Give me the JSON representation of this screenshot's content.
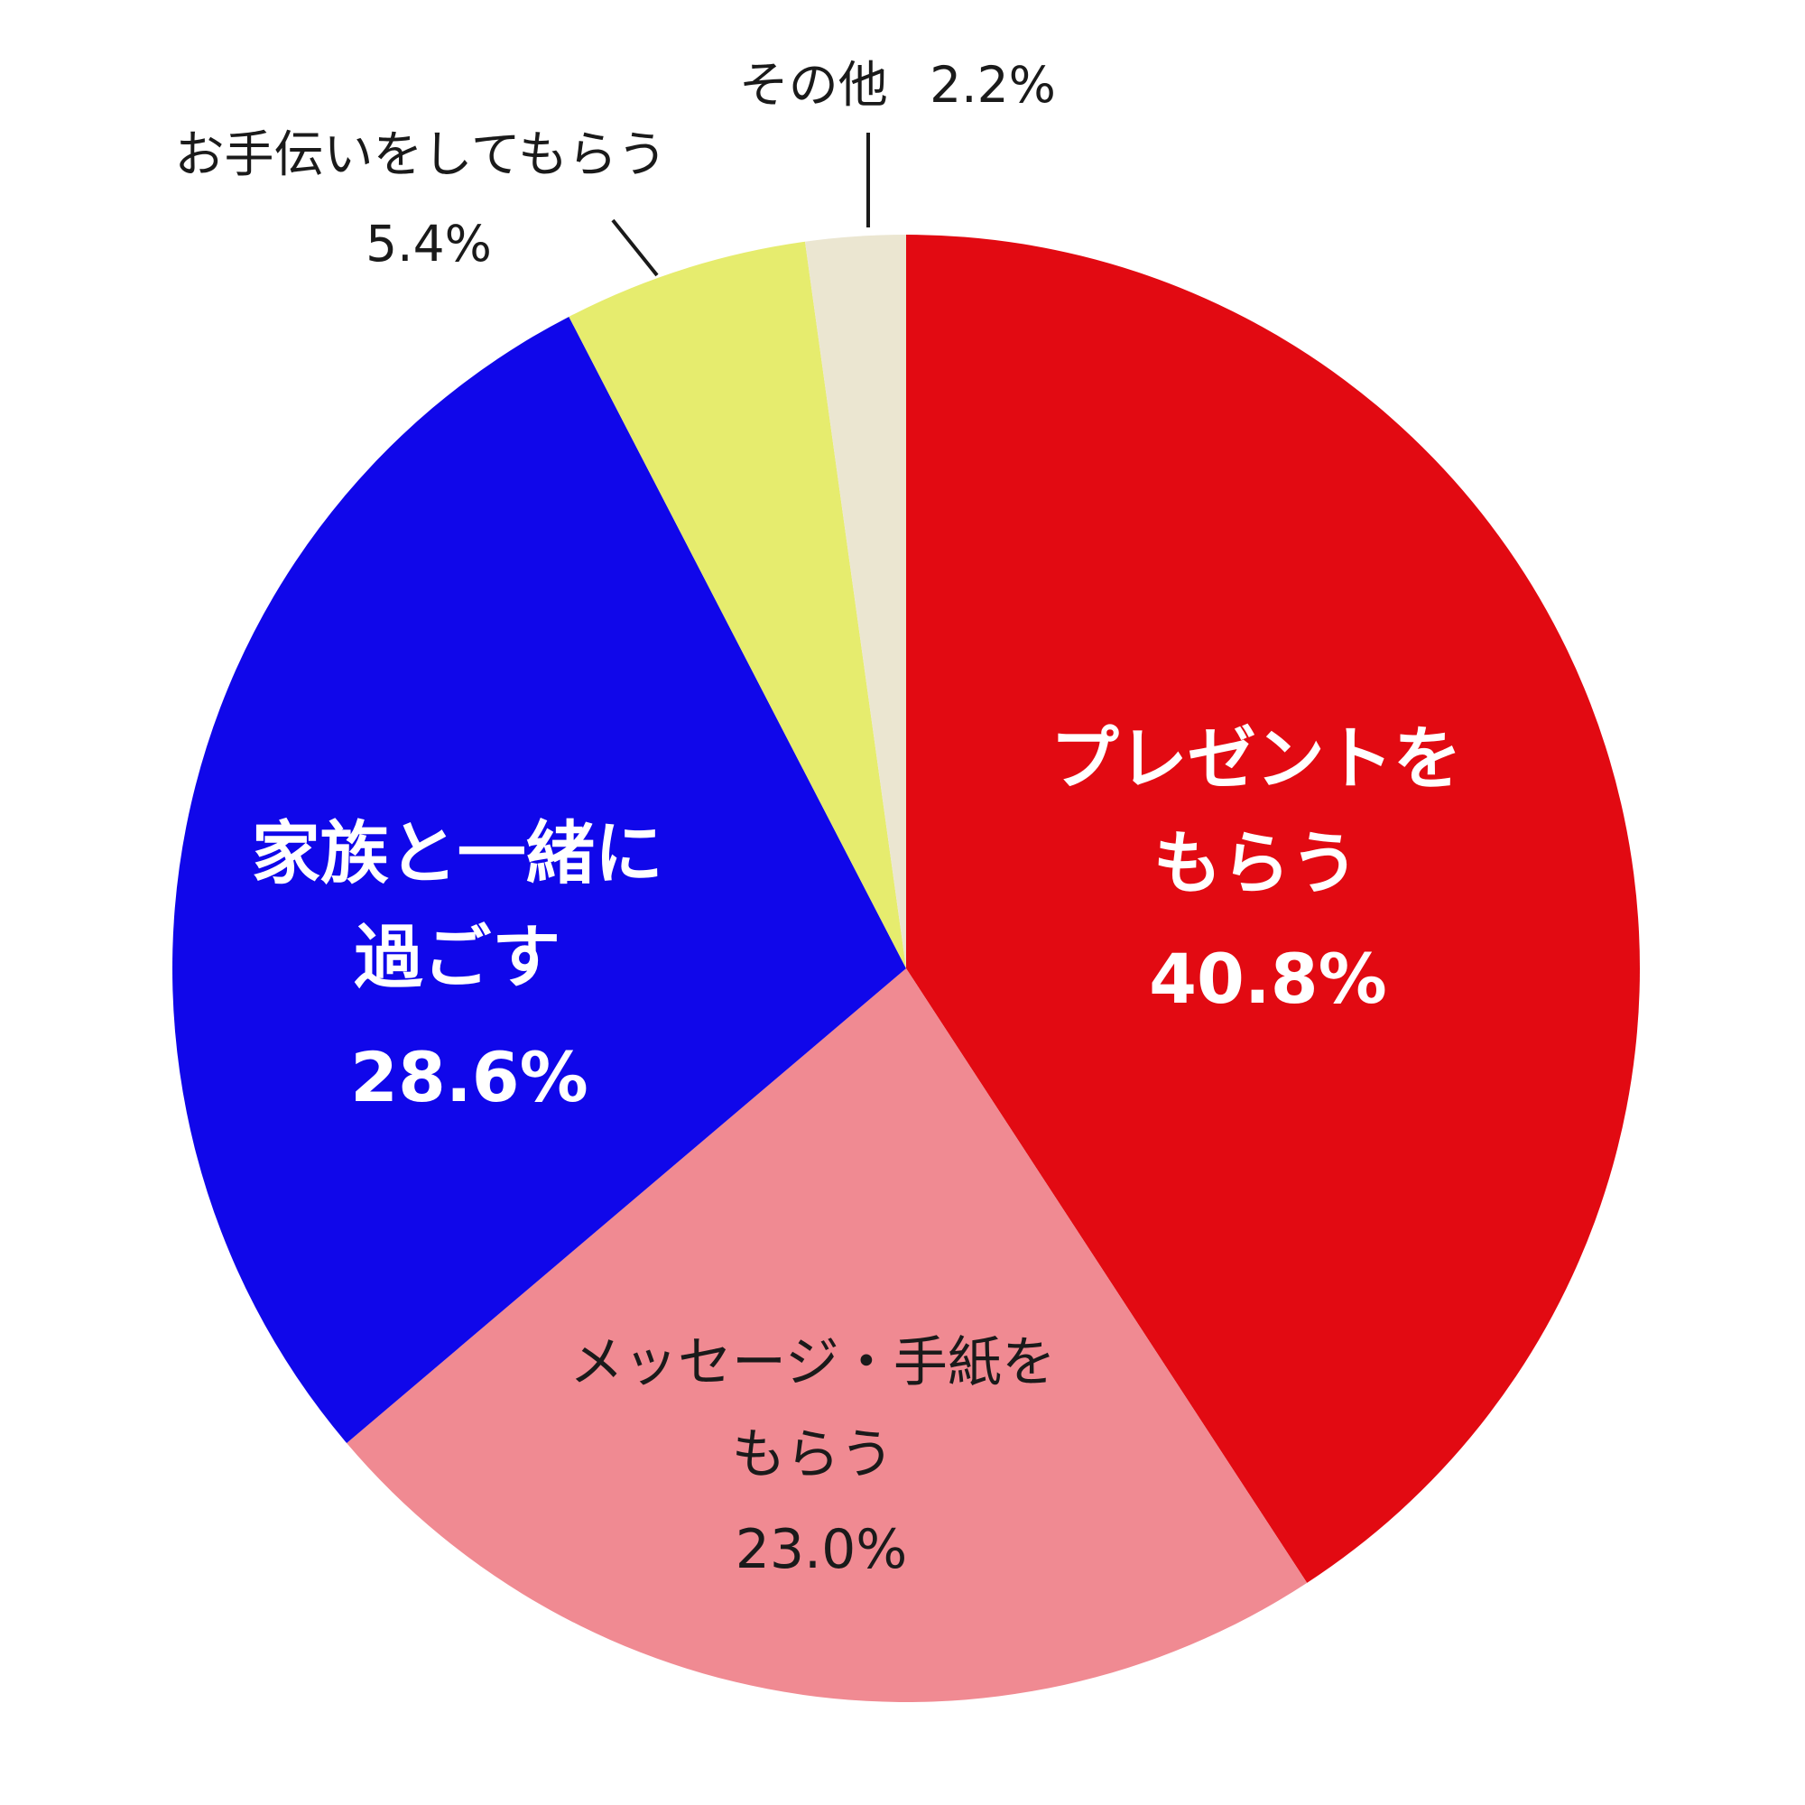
{
  "chart_data": {
    "type": "pie",
    "start": "12 o'clock",
    "direction": "clockwise",
    "slices": [
      {
        "label": [
          "プレゼントを",
          "もらう"
        ],
        "value_label": "40.8%",
        "value": 40.8,
        "color": "#e20a12",
        "label_color": "#ffffff"
      },
      {
        "label": [
          "メッセージ・手紙を",
          "もらう"
        ],
        "value_label": "23.0%",
        "value": 23.0,
        "color": "#f08a92",
        "label_color": "#1a1a1a"
      },
      {
        "label": [
          "家族と一緒に",
          "過ごす"
        ],
        "value_label": "28.6%",
        "value": 28.6,
        "color": "#1007ea",
        "label_color": "#ffffff"
      },
      {
        "label": [
          "お手伝いをしてもらう"
        ],
        "value_label": "5.4%",
        "value": 5.4,
        "color": "#e6ec6e",
        "label_color": "#1a1a1a"
      },
      {
        "label": [
          "その他"
        ],
        "value_label": "2.2%",
        "value": 2.2,
        "color": "#ebe6d1",
        "label_color": "#1a1a1a"
      }
    ]
  }
}
